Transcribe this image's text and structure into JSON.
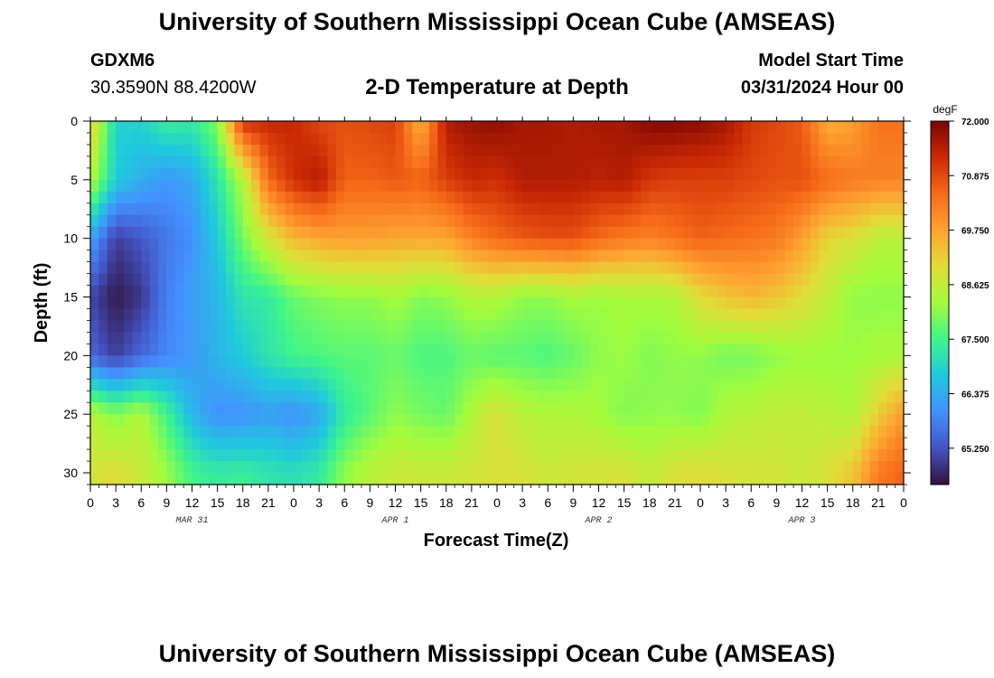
{
  "header": {
    "title": "University of Southern Mississippi Ocean Cube (AMSEAS)",
    "station_id": "GDXM6",
    "coordinates": "30.3590N  88.4200W",
    "subtitle": "2-D Temperature at Depth",
    "model_start_label": "Model Start Time",
    "model_start_value": "03/31/2024 Hour 00"
  },
  "footer": {
    "title": "University of Southern Mississippi Ocean Cube (AMSEAS)"
  },
  "chart_data": {
    "type": "heatmap",
    "xlabel": "Forecast Time(Z)",
    "ylabel": "Depth (ft)",
    "x_hours": [
      0,
      96
    ],
    "x_tick_labels": [
      "0",
      "3",
      "6",
      "9",
      "12",
      "15",
      "18",
      "21",
      "0",
      "3",
      "6",
      "9",
      "12",
      "15",
      "18",
      "21",
      "0",
      "3",
      "6",
      "9",
      "12",
      "15",
      "18",
      "21",
      "0",
      "3",
      "6",
      "9",
      "12",
      "15",
      "18",
      "21",
      "0"
    ],
    "date_labels": [
      {
        "text": "MAR 31",
        "hour": 12
      },
      {
        "text": "APR 1",
        "hour": 36
      },
      {
        "text": "APR 2",
        "hour": 60
      },
      {
        "text": "APR 3",
        "hour": 84
      }
    ],
    "ylim": [
      0,
      31
    ],
    "y_ticks": [
      0,
      5,
      10,
      15,
      20,
      25,
      30
    ],
    "y_inverted": true,
    "colorbar": {
      "unit": "degF",
      "min": 64.5,
      "max": 72.0,
      "tick_labels": [
        "72.000",
        "70.875",
        "69.750",
        "68.625",
        "67.500",
        "66.375",
        "65.250"
      ],
      "tick_values": [
        72.0,
        70.875,
        69.75,
        68.625,
        67.5,
        66.375,
        65.25
      ],
      "colormap": [
        "#30123b",
        "#4454c4",
        "#4490fe",
        "#1fc9dd",
        "#3ef58a",
        "#a4fc3c",
        "#e1dd37",
        "#fea331",
        "#f66b19",
        "#cb2a04",
        "#7a0403"
      ]
    },
    "column_hours": [
      0,
      3,
      6,
      9,
      12,
      15,
      18,
      21,
      24,
      27,
      30,
      33,
      36,
      39,
      42,
      45,
      48,
      51,
      54,
      57,
      60,
      63,
      66,
      69,
      72,
      75,
      78,
      81,
      84,
      87,
      90,
      93,
      96
    ],
    "row_depths": [
      0,
      5,
      10,
      15,
      20,
      25,
      30
    ],
    "temperatures": [
      [
        69.3,
        66.9,
        66.9,
        67.4,
        67.3,
        68.0,
        71.2,
        71.3,
        71.3,
        70.9,
        70.8,
        70.9,
        71.0,
        69.5,
        71.5,
        71.7,
        71.8,
        71.6,
        71.6,
        71.5,
        71.6,
        71.6,
        71.9,
        71.9,
        71.8,
        71.6,
        71.1,
        70.9,
        70.7,
        69.6,
        69.8,
        70.4,
        70.4
      ],
      [
        68.5,
        66.8,
        66.4,
        66.1,
        66.3,
        67.2,
        68.4,
        70.5,
        71.2,
        71.5,
        70.6,
        70.6,
        70.7,
        70.6,
        71.0,
        71.3,
        71.2,
        71.5,
        71.5,
        71.5,
        71.4,
        71.5,
        71.1,
        71.0,
        71.0,
        71.0,
        70.9,
        70.8,
        70.8,
        70.5,
        70.3,
        70.2,
        70.2
      ],
      [
        66.3,
        65.0,
        65.3,
        65.7,
        66.0,
        66.8,
        67.9,
        68.8,
        69.5,
        69.7,
        69.8,
        69.8,
        69.7,
        69.7,
        69.7,
        70.2,
        70.5,
        70.7,
        70.8,
        70.8,
        70.5,
        70.3,
        70.2,
        70.4,
        70.6,
        70.5,
        70.4,
        70.3,
        69.8,
        69.1,
        68.9,
        68.5,
        68.5
      ],
      [
        65.1,
        64.6,
        64.9,
        65.8,
        66.2,
        66.5,
        67.2,
        67.3,
        67.8,
        68.0,
        68.1,
        68.1,
        68.3,
        68.0,
        68.1,
        68.4,
        68.4,
        68.1,
        68.1,
        68.3,
        68.2,
        68.3,
        68.3,
        68.4,
        69.0,
        69.3,
        69.5,
        69.3,
        69.0,
        68.6,
        68.1,
        68.1,
        68.1
      ],
      [
        65.5,
        65.0,
        65.5,
        65.9,
        66.1,
        66.5,
        66.8,
        67.2,
        67.5,
        67.6,
        67.7,
        67.7,
        67.8,
        67.6,
        67.6,
        67.8,
        67.7,
        67.7,
        67.6,
        67.8,
        68.1,
        68.2,
        68.0,
        68.1,
        68.1,
        67.9,
        67.9,
        68.1,
        68.2,
        68.2,
        68.2,
        68.3,
        68.3
      ],
      [
        68.5,
        68.0,
        68.4,
        67.5,
        66.5,
        66.0,
        66.0,
        66.2,
        66.0,
        66.3,
        67.3,
        67.7,
        68.1,
        67.9,
        67.8,
        68.4,
        68.9,
        68.5,
        68.4,
        68.4,
        68.3,
        68.0,
        68.1,
        68.1,
        68.0,
        68.4,
        68.5,
        68.6,
        68.6,
        68.5,
        68.4,
        69.2,
        69.9
      ],
      [
        68.8,
        69.0,
        68.7,
        68.2,
        67.5,
        67.3,
        67.4,
        67.2,
        67.1,
        67.3,
        68.1,
        68.5,
        68.7,
        68.7,
        68.7,
        68.8,
        68.9,
        68.9,
        68.7,
        68.8,
        68.8,
        68.9,
        68.6,
        68.9,
        69.0,
        68.9,
        68.8,
        68.8,
        68.7,
        68.9,
        69.3,
        70.3,
        70.6
      ]
    ]
  }
}
